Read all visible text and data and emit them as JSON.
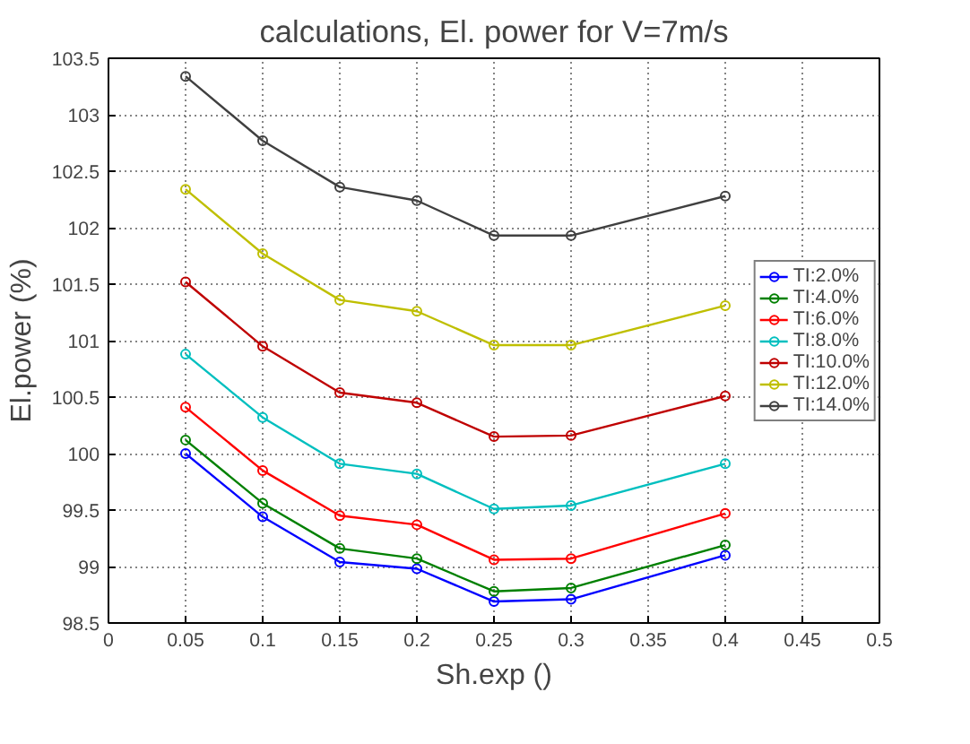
{
  "chart_data": {
    "type": "line",
    "title": "calculations, El. power for V=7m/s",
    "xlabel": "Sh.exp ()",
    "ylabel": "El.power (%)",
    "x": [
      0.05,
      0.1,
      0.15,
      0.2,
      0.25,
      0.3,
      0.4
    ],
    "series": [
      {
        "name": "TI:2.0%",
        "color": "#0000ff",
        "values": [
          100.0,
          99.44,
          99.04,
          98.98,
          98.69,
          98.71,
          99.1
        ]
      },
      {
        "name": "TI:4.0%",
        "color": "#008000",
        "values": [
          100.12,
          99.56,
          99.16,
          99.07,
          98.78,
          98.81,
          99.19
        ]
      },
      {
        "name": "TI:6.0%",
        "color": "#ff0000",
        "values": [
          100.41,
          99.85,
          99.45,
          99.37,
          99.06,
          99.07,
          99.47
        ]
      },
      {
        "name": "TI:8.0%",
        "color": "#00bfbf",
        "values": [
          100.88,
          100.32,
          99.91,
          99.82,
          99.51,
          99.54,
          99.91
        ]
      },
      {
        "name": "TI:10.0%",
        "color": "#bf0000",
        "values": [
          101.52,
          100.95,
          100.54,
          100.45,
          100.15,
          100.16,
          100.51
        ]
      },
      {
        "name": "TI:12.0%",
        "color": "#bfbf00",
        "values": [
          102.34,
          101.77,
          101.36,
          101.26,
          100.96,
          100.96,
          101.31
        ]
      },
      {
        "name": "TI:14.0%",
        "color": "#404040",
        "values": [
          103.34,
          102.77,
          102.36,
          102.24,
          101.93,
          101.93,
          102.28
        ]
      }
    ],
    "xlim": [
      0,
      0.5
    ],
    "xticks": [
      0,
      0.05,
      0.1,
      0.15,
      0.2,
      0.25,
      0.3,
      0.35,
      0.4,
      0.45,
      0.5
    ],
    "ylim": [
      98.5,
      103.5
    ],
    "yticks": [
      98.5,
      99,
      99.5,
      100,
      100.5,
      101,
      101.5,
      102,
      102.5,
      103,
      103.5
    ],
    "grid": true,
    "legend": "right",
    "marker": "circle",
    "line_style": "solid"
  }
}
